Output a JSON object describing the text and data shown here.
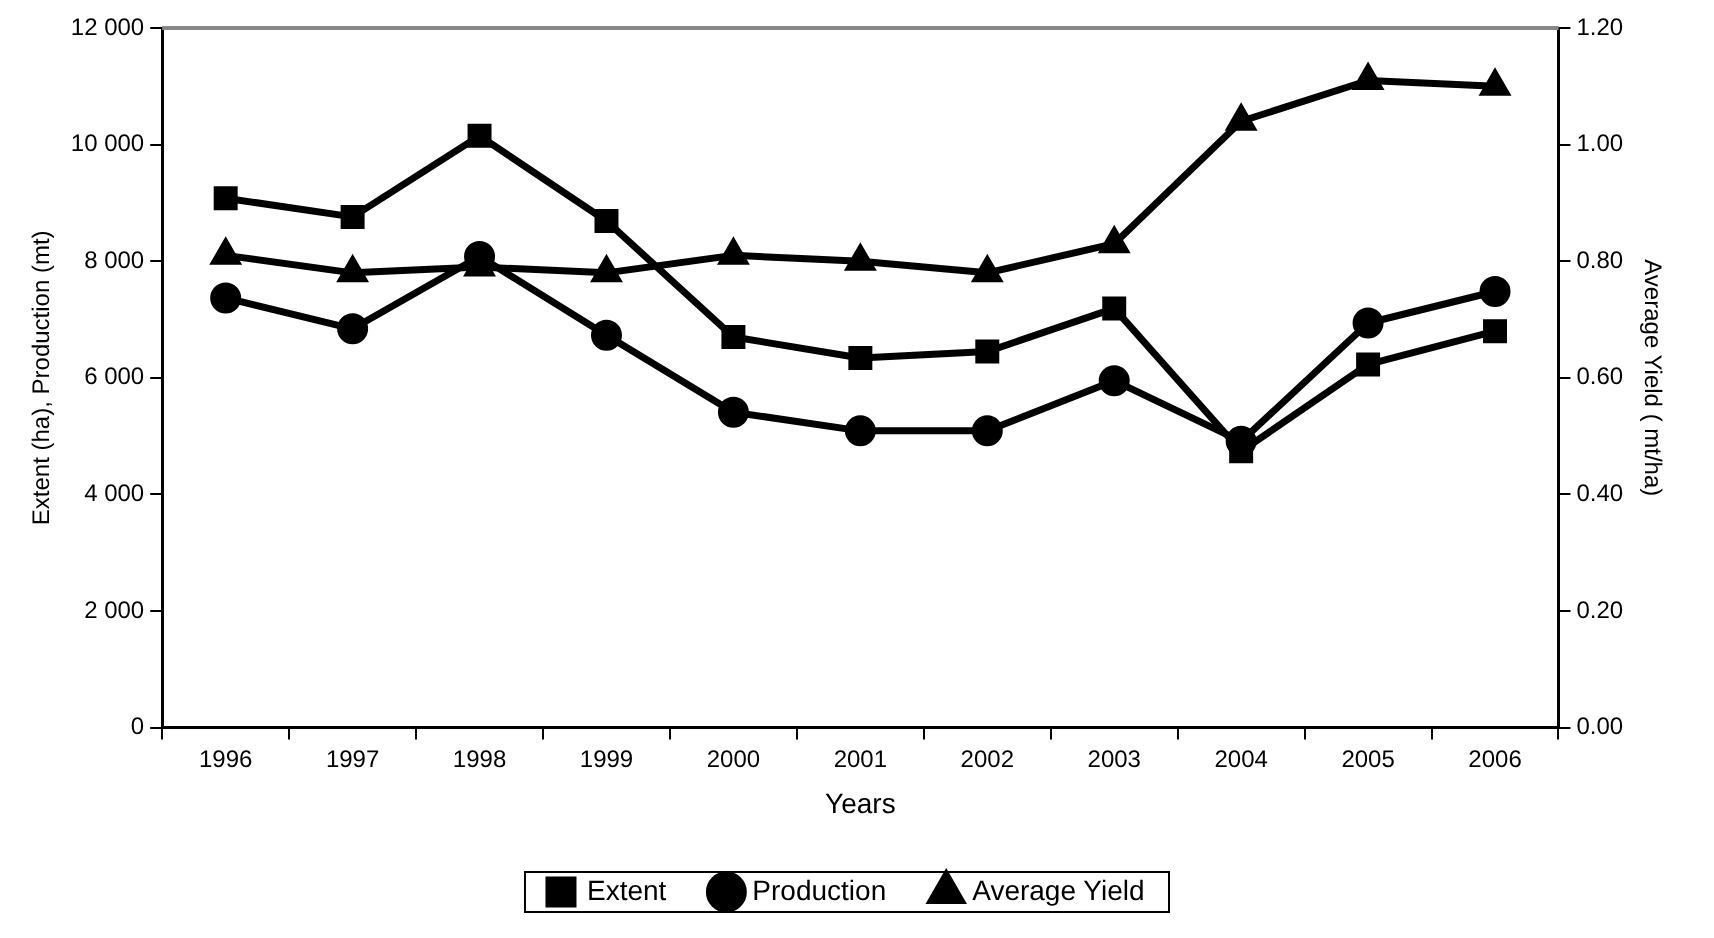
{
  "chart_data": {
    "type": "line",
    "xlabel": "Years",
    "ylabel": "Extent (ha), Production (mt)",
    "y2label": "Average Yield ( mt/ha)",
    "categories": [
      "1996",
      "1997",
      "1998",
      "1999",
      "2000",
      "2001",
      "2002",
      "2003",
      "2004",
      "2005",
      "2006"
    ],
    "series": [
      {
        "name": "Extent",
        "color": "#000000",
        "marker": "square",
        "values": [
          9080,
          8760,
          10150,
          8690,
          6700,
          6340,
          6450,
          7190,
          4740,
          6230,
          6800
        ]
      },
      {
        "name": "Production",
        "color": "#000000",
        "marker": "circle",
        "values": [
          7370,
          6840,
          8080,
          6730,
          5410,
          5090,
          5090,
          5950,
          4910,
          6940,
          7480
        ]
      },
      {
        "name": "Average Yield",
        "color": "#000000",
        "marker": "triangle",
        "axis": "y2",
        "values": [
          0.81,
          0.78,
          0.79,
          0.78,
          0.81,
          0.8,
          0.78,
          0.83,
          1.04,
          1.11,
          1.1
        ]
      }
    ],
    "ylim": [
      0,
      12000
    ],
    "yticks": [
      0,
      {
        "value": 2000,
        "label": "2 000"
      },
      {
        "value": 4000,
        "label": "4 000"
      },
      {
        "value": 6000,
        "label": "6 000"
      },
      {
        "value": 8000,
        "label": "8 000"
      },
      {
        "value": 10000,
        "label": "10 000"
      },
      {
        "value": 12000,
        "label": "12 000"
      }
    ],
    "y2lim": [
      0,
      1.2
    ],
    "y2ticks": [
      {
        "value": 0,
        "label": "0.00"
      },
      {
        "value": 0.2,
        "label": "0.20"
      },
      {
        "value": 0.4,
        "label": "0.40"
      },
      {
        "value": 0.6,
        "label": "0.60"
      },
      {
        "value": 0.8,
        "label": "0.80"
      },
      {
        "value": 1,
        "label": "1.00"
      },
      {
        "value": 1.2,
        "label": "1.20"
      }
    ],
    "grid": false,
    "legend": "bottom",
    "line_style": "solid"
  }
}
